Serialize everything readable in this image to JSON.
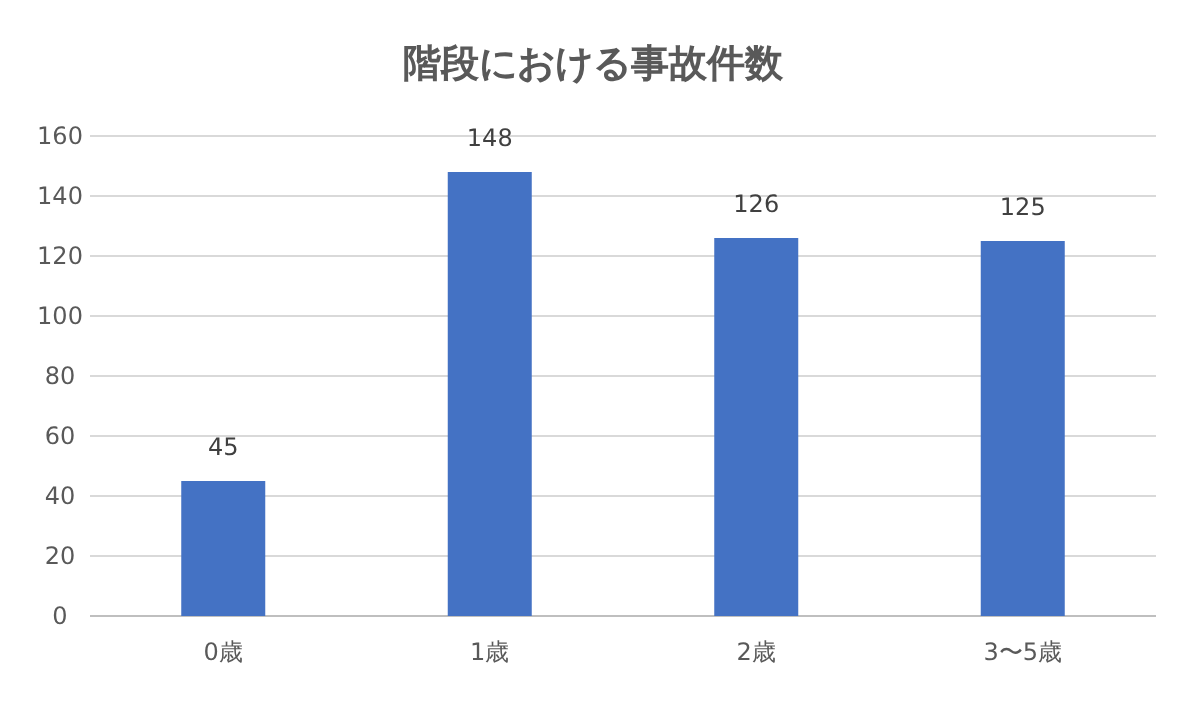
{
  "chart_data": {
    "type": "bar",
    "title": "階段における事故件数",
    "categories": [
      "0歳",
      "1歳",
      "2歳",
      "3〜5歳"
    ],
    "values": [
      45,
      148,
      126,
      125
    ],
    "color": "#4472c4",
    "ylim": [
      0,
      160
    ],
    "yticks": [
      0,
      20,
      40,
      60,
      80,
      100,
      120,
      140,
      160
    ],
    "grid": "y",
    "data_labels": true
  }
}
